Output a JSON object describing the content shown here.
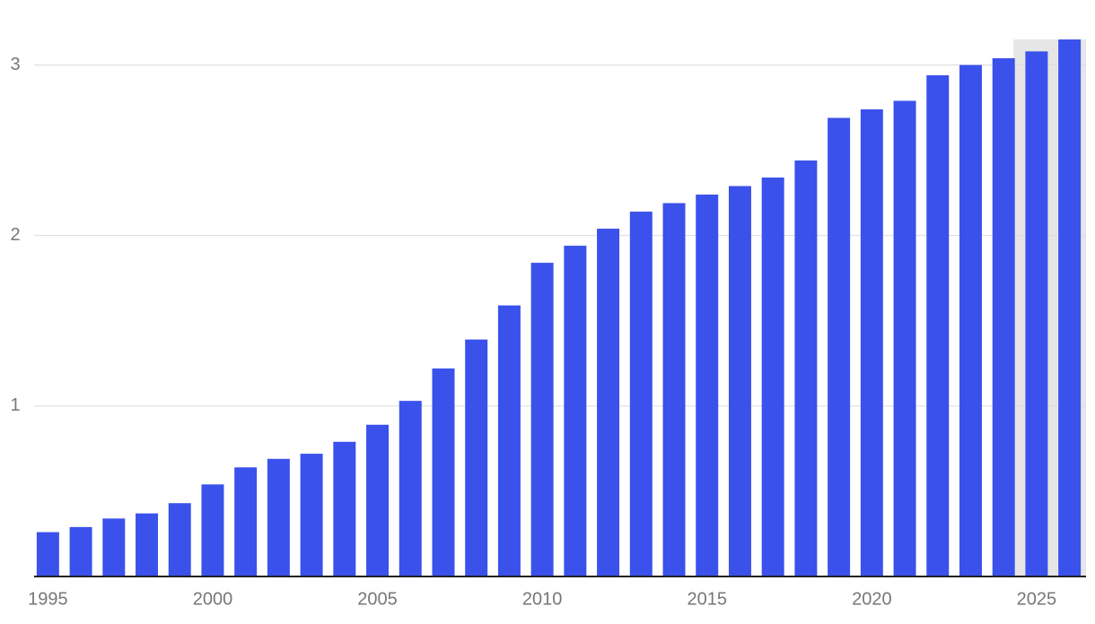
{
  "chart_data": {
    "type": "bar",
    "categories": [
      "1995",
      null,
      null,
      null,
      null,
      "2000",
      null,
      null,
      null,
      null,
      "2005",
      null,
      null,
      null,
      null,
      "2010",
      null,
      null,
      null,
      null,
      "2015",
      null,
      null,
      null,
      null,
      "2020",
      null,
      null,
      null,
      null,
      "2025",
      null
    ],
    "values": [
      0.26,
      0.29,
      0.34,
      0.37,
      0.43,
      0.54,
      0.64,
      0.69,
      0.72,
      0.79,
      0.89,
      1.03,
      1.22,
      1.39,
      1.59,
      1.84,
      1.94,
      2.04,
      2.14,
      2.19,
      2.24,
      2.29,
      2.34,
      2.44,
      2.69,
      2.74,
      2.79,
      2.94,
      3.0,
      3.04,
      3.08,
      3.15
    ],
    "color": "#3b51eb",
    "ylim": [
      0,
      3.15
    ],
    "yticks": [
      1,
      2,
      3
    ],
    "grid": true,
    "shaded_from": "2025",
    "shade_color": "#e6e6e6"
  }
}
